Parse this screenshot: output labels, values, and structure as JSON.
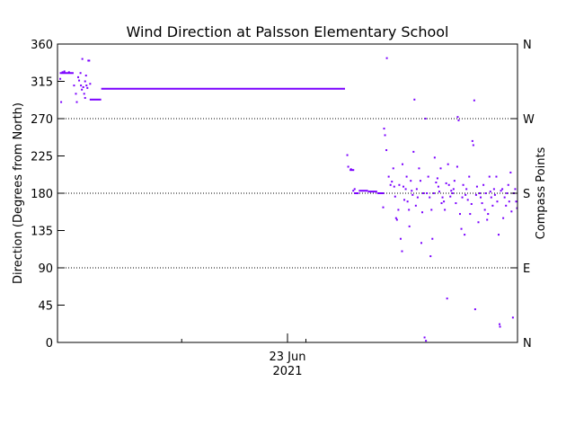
{
  "chart_data": {
    "type": "scatter",
    "title": "Wind Direction at Palsson Elementary School",
    "ylabel": "Direction (Degrees from North)",
    "y2label": "Compass Points",
    "xlabel": "",
    "x_tick_label": [
      "23 Jun",
      "2021"
    ],
    "ylim": [
      0,
      360
    ],
    "yticks": [
      0,
      45,
      90,
      135,
      180,
      225,
      270,
      315,
      360
    ],
    "compass_ticks": [
      {
        "value": 0,
        "label": "N"
      },
      {
        "value": 90,
        "label": "E"
      },
      {
        "value": 180,
        "label": "S"
      },
      {
        "value": 270,
        "label": "W"
      },
      {
        "value": 360,
        "label": "N"
      }
    ],
    "dotted_gridlines": [
      90,
      180,
      270
    ],
    "xlim": [
      0,
      100
    ],
    "x_ticks_minor": [
      27,
      54
    ],
    "x_tick_major": 50,
    "colors": {
      "points": "#7a00ff",
      "axes": "#000000",
      "grid": "#000000"
    },
    "segments": [
      {
        "x0": 0.5,
        "x1": 3.5,
        "y": 325
      },
      {
        "x0": 7.0,
        "x1": 9.5,
        "y": 293
      },
      {
        "x0": 9.5,
        "x1": 62.5,
        "y": 306
      },
      {
        "x0": 63.5,
        "x1": 64.5,
        "y": 208
      },
      {
        "x0": 64.5,
        "x1": 65.5,
        "y": 180
      },
      {
        "x0": 65.5,
        "x1": 67.5,
        "y": 183
      },
      {
        "x0": 67.5,
        "x1": 69.5,
        "y": 182
      },
      {
        "x0": 69.5,
        "x1": 71.0,
        "y": 180
      }
    ],
    "points": [
      [
        0.6,
        318
      ],
      [
        0.8,
        290
      ],
      [
        1.1,
        326
      ],
      [
        1.5,
        327
      ],
      [
        2.5,
        326
      ],
      [
        3.6,
        310
      ],
      [
        4.0,
        300
      ],
      [
        4.2,
        290
      ],
      [
        4.5,
        320
      ],
      [
        4.7,
        316
      ],
      [
        5.0,
        325
      ],
      [
        5.1,
        310
      ],
      [
        5.3,
        305
      ],
      [
        5.4,
        342
      ],
      [
        5.6,
        308
      ],
      [
        5.8,
        300
      ],
      [
        6.0,
        315
      ],
      [
        6.2,
        322
      ],
      [
        6.3,
        310
      ],
      [
        6.5,
        307
      ],
      [
        6.7,
        340
      ],
      [
        6.9,
        340
      ],
      [
        7.1,
        312
      ],
      [
        6.0,
        295
      ],
      [
        63.0,
        226
      ],
      [
        63.2,
        212
      ],
      [
        63.8,
        209
      ],
      [
        64.3,
        183
      ],
      [
        64.6,
        185
      ],
      [
        70.3,
        180
      ],
      [
        70.8,
        163
      ],
      [
        71.0,
        258
      ],
      [
        71.2,
        250
      ],
      [
        71.5,
        232
      ],
      [
        71.6,
        343
      ],
      [
        72.0,
        200
      ],
      [
        72.4,
        190
      ],
      [
        72.7,
        194
      ],
      [
        73.0,
        210
      ],
      [
        73.2,
        188
      ],
      [
        73.4,
        176
      ],
      [
        73.6,
        150
      ],
      [
        73.8,
        148
      ],
      [
        74.1,
        160
      ],
      [
        74.3,
        190
      ],
      [
        74.6,
        125
      ],
      [
        74.9,
        110
      ],
      [
        75.0,
        215
      ],
      [
        75.2,
        188
      ],
      [
        75.4,
        172
      ],
      [
        75.7,
        185
      ],
      [
        75.9,
        200
      ],
      [
        76.1,
        170
      ],
      [
        76.4,
        160
      ],
      [
        76.5,
        140
      ],
      [
        76.8,
        195
      ],
      [
        77.0,
        183
      ],
      [
        77.2,
        178
      ],
      [
        77.4,
        230
      ],
      [
        77.6,
        293
      ],
      [
        77.9,
        165
      ],
      [
        78.1,
        185
      ],
      [
        78.3,
        175
      ],
      [
        78.6,
        210
      ],
      [
        78.9,
        195
      ],
      [
        79.1,
        120
      ],
      [
        79.3,
        157
      ],
      [
        79.5,
        180
      ],
      [
        79.8,
        6
      ],
      [
        80.0,
        270
      ],
      [
        80.1,
        2
      ],
      [
        80.3,
        180
      ],
      [
        80.6,
        200
      ],
      [
        80.9,
        175
      ],
      [
        81.1,
        104
      ],
      [
        81.3,
        160
      ],
      [
        81.5,
        125
      ],
      [
        81.8,
        180
      ],
      [
        82.0,
        223
      ],
      [
        82.3,
        193
      ],
      [
        82.6,
        198
      ],
      [
        82.8,
        188
      ],
      [
        83.0,
        182
      ],
      [
        83.3,
        210
      ],
      [
        83.5,
        168
      ],
      [
        83.7,
        175
      ],
      [
        84.0,
        170
      ],
      [
        84.2,
        160
      ],
      [
        84.5,
        192
      ],
      [
        84.7,
        53
      ],
      [
        84.9,
        215
      ],
      [
        85.1,
        190
      ],
      [
        85.4,
        176
      ],
      [
        85.6,
        183
      ],
      [
        85.9,
        180
      ],
      [
        86.1,
        185
      ],
      [
        86.3,
        195
      ],
      [
        86.6,
        168
      ],
      [
        86.9,
        212
      ],
      [
        87.0,
        272
      ],
      [
        87.2,
        268
      ],
      [
        87.5,
        155
      ],
      [
        87.8,
        137
      ],
      [
        88.0,
        175
      ],
      [
        88.2,
        190
      ],
      [
        88.5,
        130
      ],
      [
        88.7,
        178
      ],
      [
        88.9,
        185
      ],
      [
        89.2,
        172
      ],
      [
        89.5,
        200
      ],
      [
        89.7,
        155
      ],
      [
        90.0,
        167
      ],
      [
        90.2,
        243
      ],
      [
        90.4,
        238
      ],
      [
        90.6,
        292
      ],
      [
        90.8,
        40
      ],
      [
        91.0,
        178
      ],
      [
        91.2,
        188
      ],
      [
        91.5,
        145
      ],
      [
        91.8,
        180
      ],
      [
        92.0,
        175
      ],
      [
        92.3,
        168
      ],
      [
        92.6,
        190
      ],
      [
        92.9,
        160
      ],
      [
        93.1,
        180
      ],
      [
        93.4,
        148
      ],
      [
        93.6,
        155
      ],
      [
        93.9,
        200
      ],
      [
        94.1,
        182
      ],
      [
        94.3,
        175
      ],
      [
        94.6,
        165
      ],
      [
        94.9,
        185
      ],
      [
        95.1,
        178
      ],
      [
        95.4,
        200
      ],
      [
        95.6,
        170
      ],
      [
        95.9,
        130
      ],
      [
        96.1,
        22
      ],
      [
        96.2,
        19
      ],
      [
        96.4,
        183
      ],
      [
        96.7,
        185
      ],
      [
        96.9,
        150
      ],
      [
        97.2,
        175
      ],
      [
        97.5,
        165
      ],
      [
        97.7,
        180
      ],
      [
        98.0,
        190
      ],
      [
        98.2,
        170
      ],
      [
        98.5,
        205
      ],
      [
        98.7,
        158
      ],
      [
        99.0,
        30
      ],
      [
        99.2,
        180
      ],
      [
        99.5,
        185
      ],
      [
        99.7,
        170
      ],
      [
        99.9,
        162
      ]
    ]
  }
}
